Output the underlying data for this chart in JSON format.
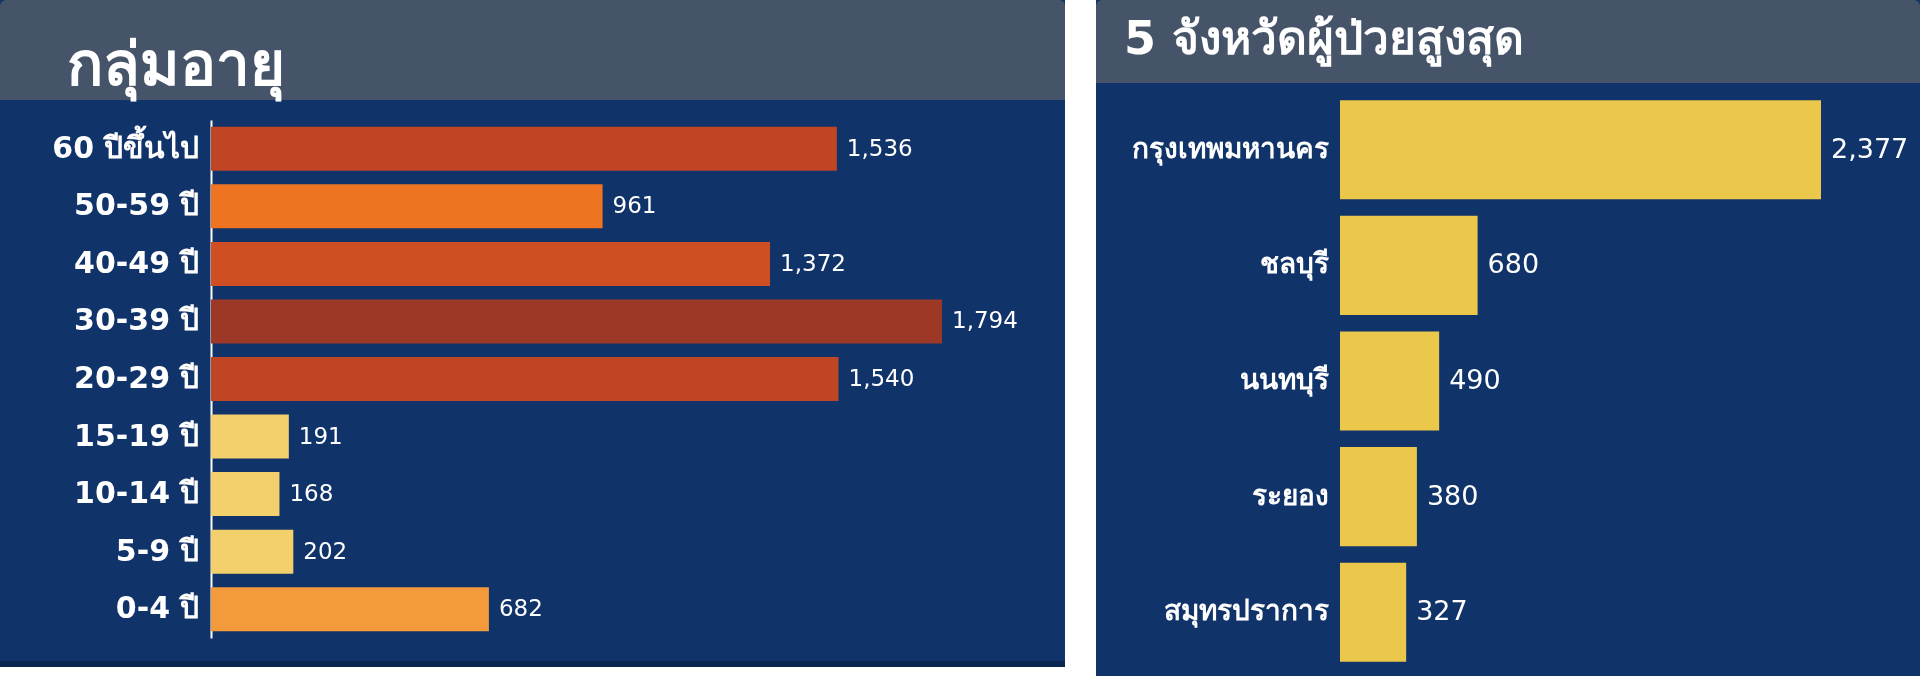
{
  "chart_data": [
    {
      "type": "bar",
      "title": "กลุ่มอายุ",
      "orientation": "horizontal",
      "categories": [
        "60 ปีขึ้นไป",
        "50-59 ปี",
        "40-49 ปี",
        "30-39 ปี",
        "20-29 ปี",
        "15-19 ปี",
        "10-14 ปี",
        "5-9 ปี",
        "0-4 ปี"
      ],
      "values": [
        1536,
        961,
        1372,
        1794,
        1540,
        191,
        168,
        202,
        682
      ],
      "value_labels": [
        "1,536",
        "961",
        "1,372",
        "1,794",
        "1,540",
        "191",
        "168",
        "202",
        "682"
      ],
      "colors": [
        "#bf4524",
        "#ee7421",
        "#cf4e22",
        "#9e3826",
        "#bf4524",
        "#f3d06c",
        "#f3d06c",
        "#f3d06c",
        "#f39a3b"
      ]
    },
    {
      "type": "bar",
      "title": "5 จังหวัดผู้ป่วยสูงสุด",
      "orientation": "horizontal",
      "categories": [
        "กรุงเทพมหานคร",
        "ชลบุรี",
        "นนทบุรี",
        "ระยอง",
        "สมุทรปราการ"
      ],
      "values": [
        2377,
        680,
        490,
        380,
        327
      ],
      "value_labels": [
        "2,377",
        "680",
        "490",
        "380",
        "327"
      ],
      "color": "#ebc84b"
    }
  ]
}
